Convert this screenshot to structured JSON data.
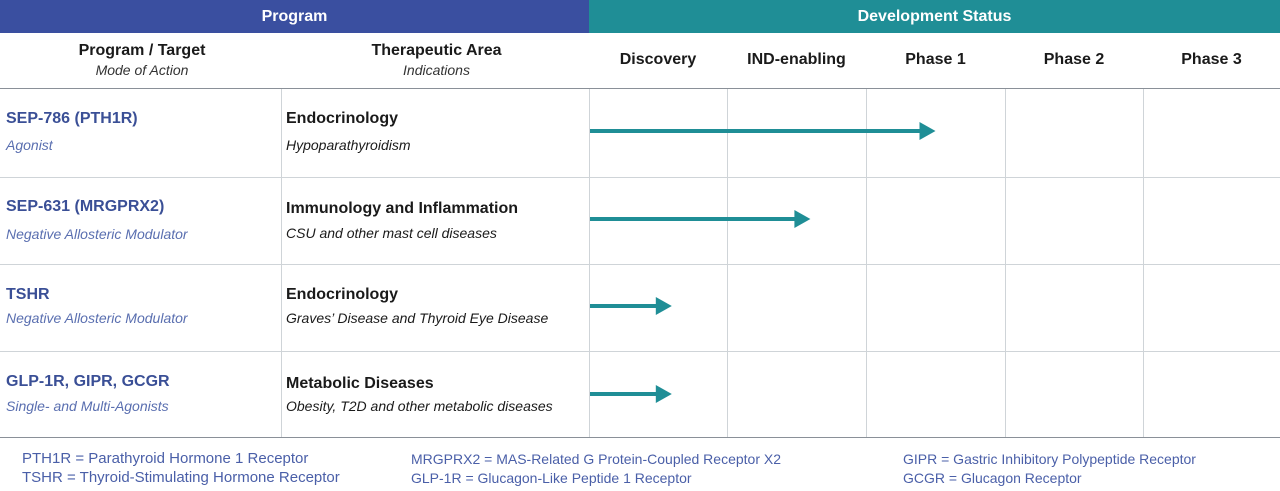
{
  "header": {
    "program_label": "Program",
    "status_label": "Development Status"
  },
  "columns": {
    "program_target": "Program / Target",
    "mode_of_action": "Mode of Action",
    "therapeutic_area": "Therapeutic Area",
    "indications": "Indications"
  },
  "chart_data": {
    "type": "table",
    "stages": [
      "Discovery",
      "IND-enabling",
      "Phase 1",
      "Phase 2",
      "Phase 3"
    ],
    "rows": [
      {
        "program": "SEP-786 (PTH1R)",
        "mode": "Agonist",
        "area": "Endocrinology",
        "indication": "Hypoparathyroidism",
        "progress": 2.5
      },
      {
        "program": "SEP-631 (MRGPRX2)",
        "mode": "Negative Allosteric Modulator",
        "area": "Immunology and Inflammation",
        "indication": "CSU and other mast cell diseases",
        "progress": 1.6
      },
      {
        "program": "TSHR",
        "mode": "Negative Allosteric Modulator",
        "area": "Endocrinology",
        "indication": "Graves’ Disease and Thyroid Eye Disease",
        "progress": 0.6
      },
      {
        "program": "GLP-1R, GIPR, GCGR",
        "mode": "Single- and Multi-Agonists",
        "area": "Metabolic Diseases",
        "indication": "Obesity, T2D and other metabolic diseases",
        "progress": 0.6
      }
    ]
  },
  "legend": [
    [
      "PTH1R = Parathyroid Hormone 1 Receptor",
      "TSHR = Thyroid-Stimulating Hormone Receptor"
    ],
    [
      "MRGPRX2 = MAS-Related G Protein-Coupled Receptor X2",
      "GLP-1R = Glucagon-Like Peptide 1 Receptor"
    ],
    [
      "GIPR = Gastric Inhibitory Polypeptide Receptor",
      "GCGR = Glucagon Receptor"
    ]
  ],
  "colors": {
    "program_band": "#3a4fa0",
    "status_band": "#1f8e96",
    "program_text": "#3a4f96",
    "mode_text": "#5a6fb0",
    "arrow": "#1f8e96",
    "legend_text": "#4a5fa8",
    "grid": "#cfd4d8"
  }
}
